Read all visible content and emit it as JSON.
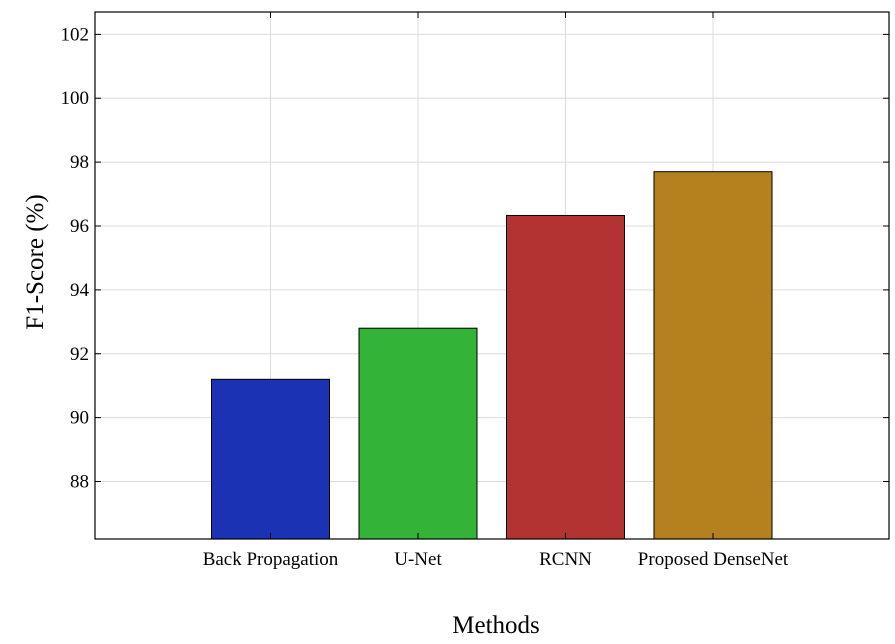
{
  "chart_data": {
    "type": "bar",
    "categories": [
      "Back Propagation",
      "U-Net",
      "RCNN",
      "Proposed DenseNet"
    ],
    "values": [
      91.2,
      92.8,
      96.33,
      97.7
    ],
    "colors": [
      "#1c32b4",
      "#33b438",
      "#b33333",
      "#b5801e"
    ],
    "title": "",
    "xlabel": "Methods",
    "ylabel": "F1-Score (%)",
    "ylim": [
      86.2,
      102.7
    ],
    "yticks": [
      88,
      90,
      92,
      94,
      96,
      98,
      100,
      102
    ],
    "grid": true,
    "legend": "none"
  }
}
